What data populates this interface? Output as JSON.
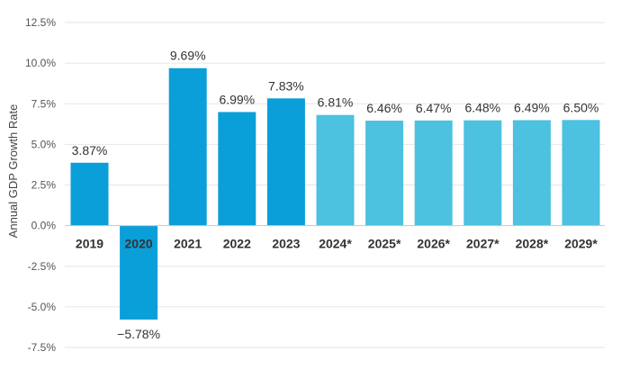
{
  "chart_data": {
    "type": "bar",
    "title": "",
    "xlabel": "",
    "ylabel": "Annual GDP Growth Rate",
    "categories": [
      "2019",
      "2020",
      "2021",
      "2022",
      "2023",
      "2024*",
      "2025*",
      "2026*",
      "2027*",
      "2028*",
      "2029*"
    ],
    "values": [
      3.87,
      -5.78,
      9.69,
      6.99,
      7.83,
      6.81,
      6.46,
      6.47,
      6.48,
      6.49,
      6.5
    ],
    "value_labels": [
      "3.87%",
      "−5.78%",
      "9.69%",
      "6.99%",
      "7.83%",
      "6.81%",
      "6.46%",
      "6.47%",
      "6.48%",
      "6.49%",
      "6.50%"
    ],
    "projected": [
      false,
      false,
      false,
      false,
      false,
      true,
      true,
      true,
      true,
      true,
      true
    ],
    "ylim": [
      -7.5,
      12.5
    ],
    "yticks": [
      -7.5,
      -5.0,
      -2.5,
      0.0,
      2.5,
      5.0,
      7.5,
      10.0,
      12.5
    ],
    "ytick_labels": [
      "-7.5%",
      "-5.0%",
      "-2.5%",
      "0.0%",
      "2.5%",
      "5.0%",
      "7.5%",
      "10.0%",
      "12.5%"
    ],
    "grid": true,
    "colors": {
      "actual": "#0a9fd9",
      "projected": "#4cc1e0"
    }
  }
}
